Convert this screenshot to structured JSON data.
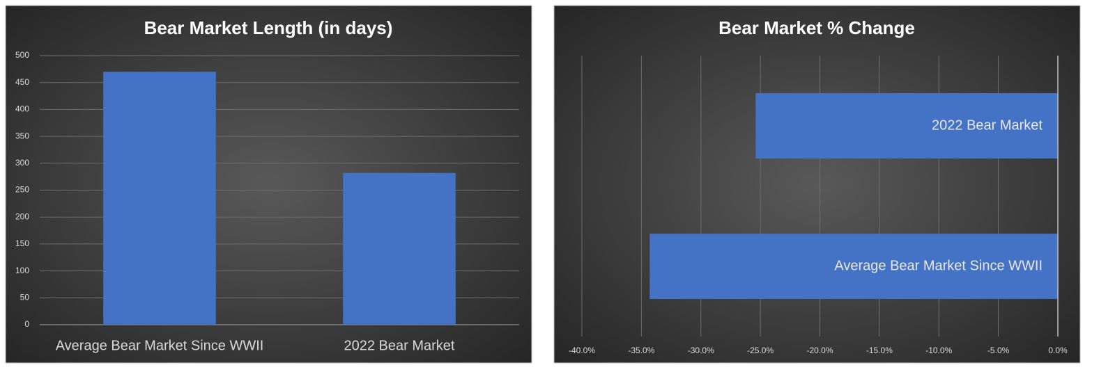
{
  "chart_data": [
    {
      "type": "bar",
      "title": "Bear Market Length (in days)",
      "categories": [
        "Average Bear Market Since WWII",
        "2022 Bear Market"
      ],
      "values": [
        470,
        282
      ],
      "color": "#4472c4",
      "ylim": [
        0,
        500
      ],
      "yticks": [
        0,
        50,
        100,
        150,
        200,
        250,
        300,
        350,
        400,
        450,
        500
      ],
      "grid": true
    },
    {
      "type": "barh",
      "title": "Bear Market % Change",
      "categories": [
        "Average Bear Market Since WWII",
        "2022 Bear Market"
      ],
      "values": [
        -34.3,
        -25.4
      ],
      "color": "#4472c4",
      "xlim": [
        -40,
        0
      ],
      "xticks": [
        {
          "value": -40,
          "label": "-40.0%"
        },
        {
          "value": -35,
          "label": "-35.0%"
        },
        {
          "value": -30,
          "label": "-30.0%"
        },
        {
          "value": -25,
          "label": "-25.0%"
        },
        {
          "value": -20,
          "label": "-20.0%"
        },
        {
          "value": -15,
          "label": "-15.0%"
        },
        {
          "value": -10,
          "label": "-10.0%"
        },
        {
          "value": -5,
          "label": "-5.0%"
        },
        {
          "value": 0,
          "label": "0.0%"
        }
      ],
      "grid": true
    }
  ]
}
